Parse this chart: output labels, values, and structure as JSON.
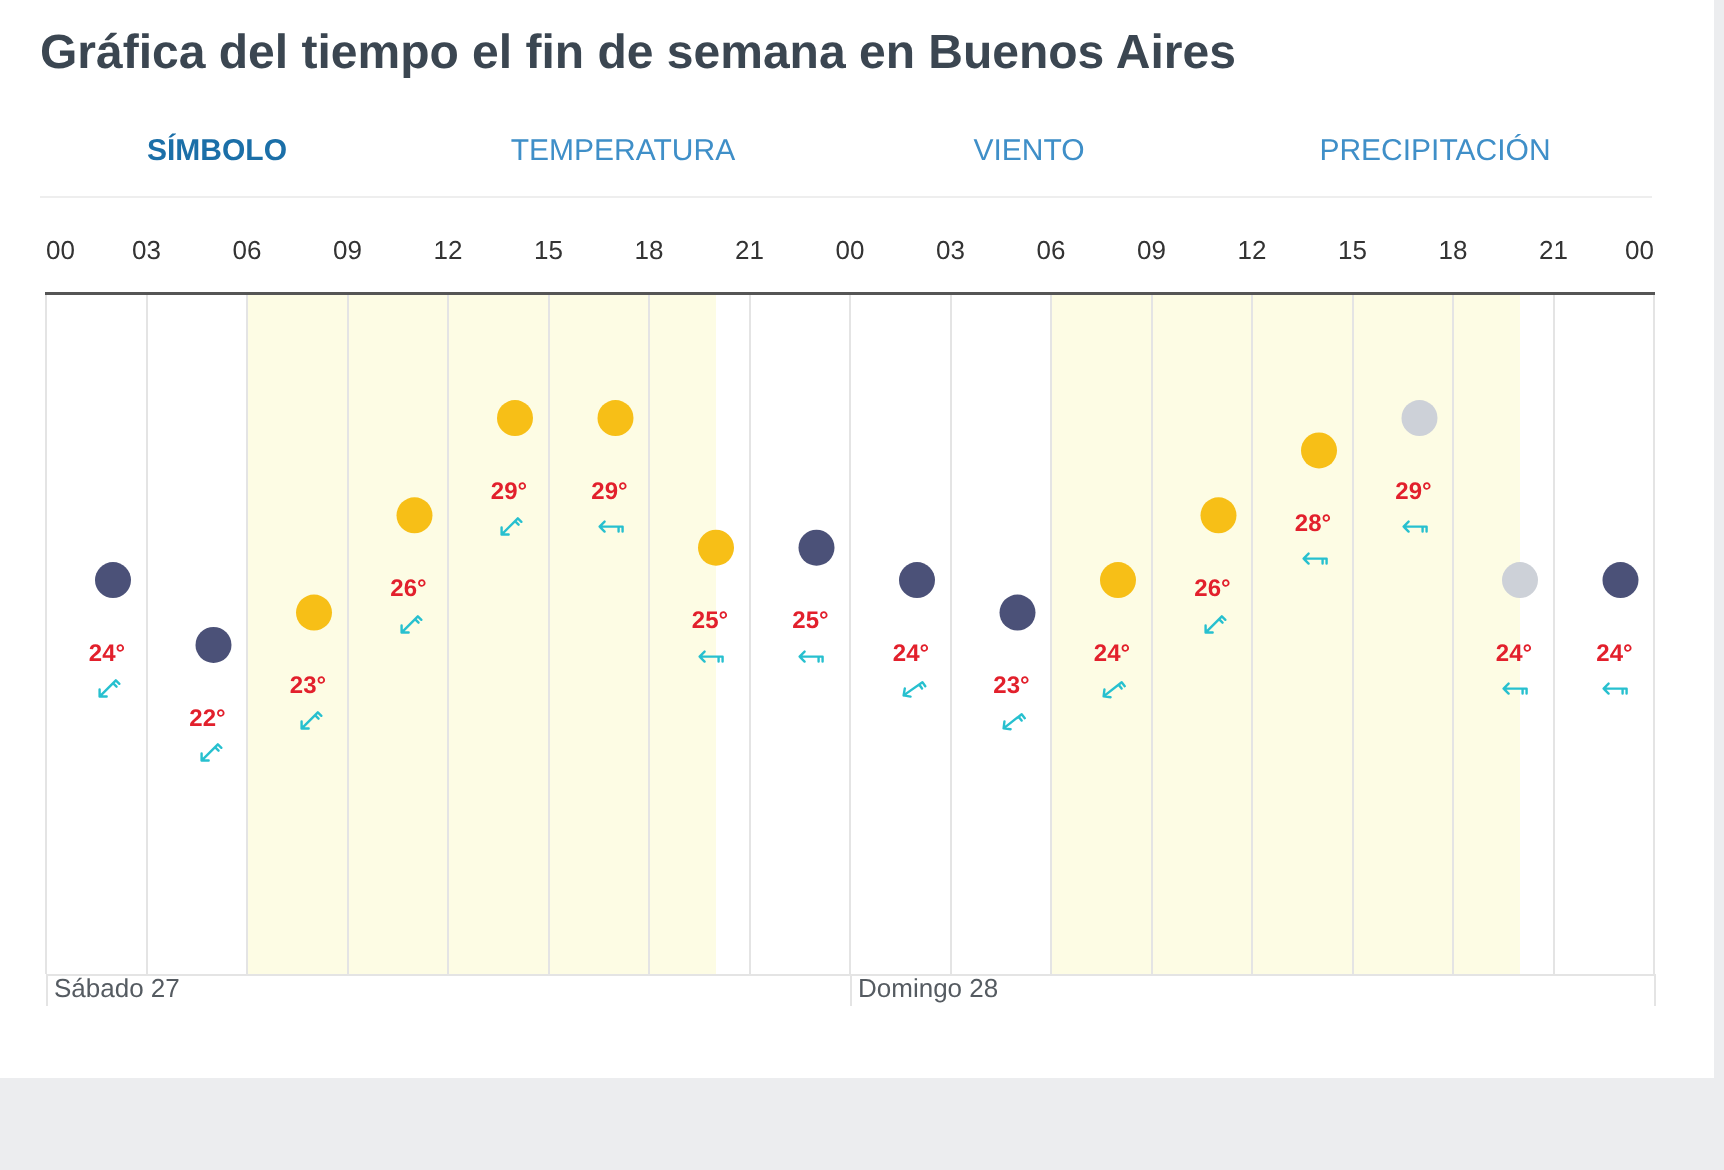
{
  "chart_data": {
    "type": "scatter",
    "title": "Gráfica del tiempo el fin de semana en Buenos Aires",
    "annotations": [
      "SÍMBOLO",
      "TEMPERATURA",
      "VIENTO",
      "PRECIPITACIÓN",
      "Sábado 27",
      "Domingo 28"
    ],
    "x": [
      2,
      5,
      8,
      11,
      14,
      17,
      20,
      23,
      26,
      29,
      32,
      35,
      38,
      41,
      44,
      47
    ],
    "values": [
      24,
      22,
      23,
      26,
      29,
      29,
      25,
      25,
      24,
      23,
      24,
      26,
      28,
      29,
      24,
      24
    ],
    "colors": [
      "#4b5178",
      "#4b5178",
      "#f7bf17",
      "#f7bf17",
      "#f7bf17",
      "#f7bf17",
      "#f7bf17",
      "#4b5178",
      "#4b5178",
      "#4b5178",
      "#f7bf17",
      "#f7bf17",
      "#f7bf17",
      "#cdd1d8",
      "#cdd1d8",
      "#4b5178"
    ],
    "value_labels": [
      "24°",
      "22°",
      "23°",
      "26°",
      "29°",
      "29°",
      "25°",
      "25°",
      "24°",
      "23°",
      "24°",
      "26°",
      "28°",
      "29°",
      "24°",
      "24°"
    ],
    "xlim": [
      0,
      48
    ],
    "xticks": [
      {
        "value": 0,
        "label": "00"
      },
      {
        "value": 3,
        "label": "03"
      },
      {
        "value": 6,
        "label": "06"
      },
      {
        "value": 9,
        "label": "09"
      },
      12,
      15,
      18,
      21,
      {
        "value": 24,
        "label": "00"
      },
      {
        "value": 27,
        "label": "03"
      },
      {
        "value": 30,
        "label": "06"
      },
      {
        "value": 33,
        "label": "09"
      },
      {
        "value": 36,
        "label": "12"
      },
      {
        "value": 39,
        "label": "15"
      },
      {
        "value": 42,
        "label": "18"
      },
      {
        "value": 45,
        "label": "21"
      },
      {
        "value": 48,
        "label": "00"
      }
    ],
    "tick_labels": "x",
    "grid": "x",
    "marker": "circle",
    "bands": [
      {
        "axis": "x",
        "from": 6,
        "to": 20,
        "color": "#fdfce4"
      },
      {
        "axis": "x",
        "from": 30,
        "to": 44,
        "color": "#fdfce4"
      }
    ]
  }
}
